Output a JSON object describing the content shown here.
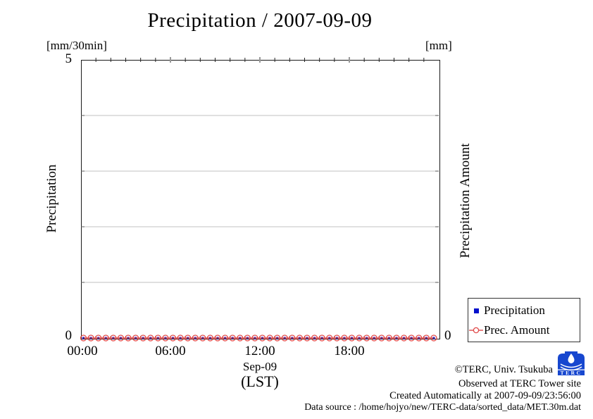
{
  "chart_data": {
    "type": "line",
    "title": "Precipitation / 2007-09-09",
    "x_tick_labels": [
      "00:00",
      "06:00",
      "12:00",
      "18:00"
    ],
    "x_label": "Sep-09",
    "x_sublabel": "(LST)",
    "y_left": {
      "unit": "[mm/30min]",
      "label": "Precipitation",
      "min": 0,
      "max": 5,
      "tick_labels": [
        "5",
        "0"
      ]
    },
    "y_right": {
      "unit": "[mm]",
      "label": "Precipitation Amount",
      "tick_labels": [
        "0"
      ]
    },
    "grid_values": [
      1,
      2,
      3,
      4
    ],
    "grid_on": true,
    "legend_position": "outside-right-below-plot",
    "x_times": [
      "00:00",
      "00:30",
      "01:00",
      "01:30",
      "02:00",
      "02:30",
      "03:00",
      "03:30",
      "04:00",
      "04:30",
      "05:00",
      "05:30",
      "06:00",
      "06:30",
      "07:00",
      "07:30",
      "08:00",
      "08:30",
      "09:00",
      "09:30",
      "10:00",
      "10:30",
      "11:00",
      "11:30",
      "12:00",
      "12:30",
      "13:00",
      "13:30",
      "14:00",
      "14:30",
      "15:00",
      "15:30",
      "16:00",
      "16:30",
      "17:00",
      "17:30",
      "18:00",
      "18:30",
      "19:00",
      "19:30",
      "20:00",
      "20:30",
      "21:00",
      "21:30",
      "22:00",
      "22:30",
      "23:00",
      "23:30"
    ],
    "series": [
      {
        "name": "Precipitation",
        "marker": "blue-filled-square",
        "color": "#0010cc",
        "values": [
          0,
          0,
          0,
          0,
          0,
          0,
          0,
          0,
          0,
          0,
          0,
          0,
          0,
          0,
          0,
          0,
          0,
          0,
          0,
          0,
          0,
          0,
          0,
          0,
          0,
          0,
          0,
          0,
          0,
          0,
          0,
          0,
          0,
          0,
          0,
          0,
          0,
          0,
          0,
          0,
          0,
          0,
          0,
          0,
          0,
          0,
          0,
          0
        ]
      },
      {
        "name": "Prec. Amount",
        "marker": "red-open-circle-with-line",
        "color": "#d93434",
        "values": [
          0,
          0,
          0,
          0,
          0,
          0,
          0,
          0,
          0,
          0,
          0,
          0,
          0,
          0,
          0,
          0,
          0,
          0,
          0,
          0,
          0,
          0,
          0,
          0,
          0,
          0,
          0,
          0,
          0,
          0,
          0,
          0,
          0,
          0,
          0,
          0,
          0,
          0,
          0,
          0,
          0,
          0,
          0,
          0,
          0,
          0,
          0,
          0
        ]
      }
    ]
  },
  "legend": {
    "items": [
      {
        "label": "Precipitation"
      },
      {
        "label": "Prec. Amount"
      }
    ]
  },
  "footer": {
    "copyright": "©TERC, Univ. Tsukuba",
    "observed": "Observed at TERC Tower site",
    "created": "Created Automatically at 2007-09-09/23:56:00",
    "data_source": "Data source : /home/hojyo/new/TERC-data/sorted_data/MET.30m.dat",
    "logo_text": "TERC"
  },
  "colors": {
    "line_red": "#d93434",
    "marker_red": "#e04848",
    "marker_blue": "#0010cc",
    "grid_gray": "#c0c0c0",
    "axis_black": "#1a1a1a",
    "logo_blue": "#1747cf"
  }
}
